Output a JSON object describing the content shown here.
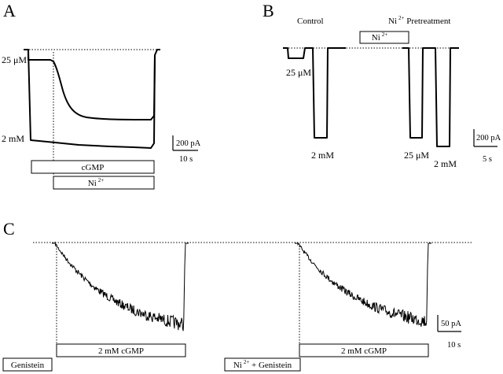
{
  "panels": {
    "A": {
      "letter": "A",
      "labels": {
        "conc_low": "25 μM",
        "conc_high": "2 mM"
      },
      "bars": {
        "cgmp": "cGMP",
        "ni_base": "Ni",
        "ni_sup": "2+"
      },
      "scale": {
        "current": "200 pA",
        "time": "10 s"
      }
    },
    "B": {
      "letter": "B",
      "labels": {
        "control": "Control",
        "pretreat_base": "Ni",
        "pretreat_sup": "2+",
        "pretreat_rest": " Pretreatment",
        "conc_low_1": "25 μM",
        "conc_high_1": "2 mM",
        "conc_low_2": "25 μM",
        "conc_high_2": "2 mM"
      },
      "bars": {
        "ni_base": "Ni",
        "ni_sup": "2+"
      },
      "scale": {
        "current": "200 pA",
        "time": "5 s"
      }
    },
    "C": {
      "letter": "C",
      "bars": {
        "genistein": "Genistein",
        "cgmp_1": "2 mM cGMP",
        "ni_base": "Ni",
        "ni_sup": "2+",
        "ni_rest": " + Genistein",
        "cgmp_2": "2 mM cGMP"
      },
      "scale": {
        "current": "50 pA",
        "time": "10 s"
      }
    }
  }
}
